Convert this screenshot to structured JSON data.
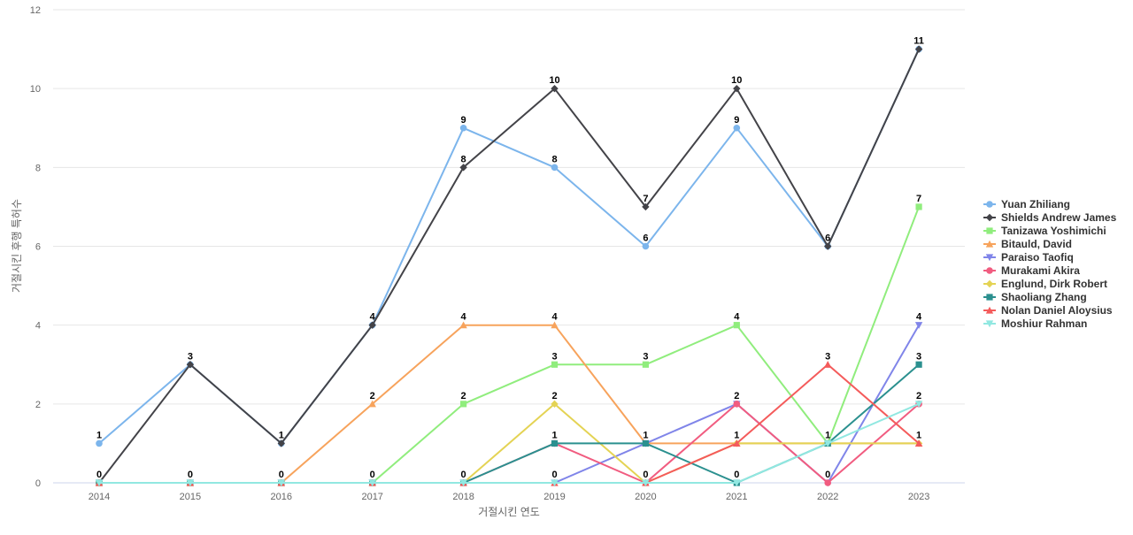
{
  "chart_data": {
    "type": "line",
    "categories": [
      "2014",
      "2015",
      "2016",
      "2017",
      "2018",
      "2019",
      "2020",
      "2021",
      "2022",
      "2023"
    ],
    "xlabel": "거절시킨 연도",
    "ylabel": "거절시킨 후행 특허수",
    "ylim": [
      0,
      12
    ],
    "yticks": [
      0,
      2,
      4,
      6,
      8,
      10,
      12
    ],
    "grid": true,
    "legend_position": "right",
    "series": [
      {
        "name": "Yuan Zhiliang",
        "color": "#7cb5ec",
        "marker": "circle",
        "values": [
          1,
          3,
          1,
          4,
          9,
          8,
          6,
          9,
          6,
          11
        ]
      },
      {
        "name": "Shields Andrew James",
        "color": "#434348",
        "marker": "diamond",
        "values": [
          0,
          3,
          1,
          4,
          8,
          10,
          7,
          10,
          6,
          11
        ]
      },
      {
        "name": "Tanizawa Yoshimichi",
        "color": "#90ed7d",
        "marker": "square",
        "values": [
          0,
          0,
          0,
          0,
          2,
          3,
          3,
          4,
          1,
          7
        ]
      },
      {
        "name": "Bitauld, David",
        "color": "#f7a35c",
        "marker": "triangle",
        "values": [
          0,
          0,
          0,
          2,
          4,
          4,
          1,
          1,
          1,
          1
        ]
      },
      {
        "name": "Paraiso Taofiq",
        "color": "#8085e9",
        "marker": "triangle-down",
        "values": [
          0,
          0,
          0,
          0,
          0,
          0,
          1,
          2,
          0,
          4
        ]
      },
      {
        "name": "Murakami Akira",
        "color": "#f15c80",
        "marker": "circle",
        "values": [
          0,
          0,
          0,
          0,
          0,
          1,
          0,
          2,
          0,
          2
        ]
      },
      {
        "name": "Englund, Dirk Robert",
        "color": "#e4d354",
        "marker": "diamond",
        "values": [
          0,
          0,
          0,
          0,
          0,
          2,
          0,
          1,
          1,
          1
        ]
      },
      {
        "name": "Shaoliang Zhang",
        "color": "#2b908f",
        "marker": "square",
        "values": [
          0,
          0,
          0,
          0,
          0,
          1,
          1,
          0,
          1,
          3
        ]
      },
      {
        "name": "Nolan Daniel Aloysius",
        "color": "#f45b5b",
        "marker": "triangle",
        "values": [
          0,
          0,
          0,
          0,
          0,
          0,
          0,
          1,
          3,
          1
        ]
      },
      {
        "name": "Moshiur Rahman",
        "color": "#91e8e1",
        "marker": "triangle-down",
        "values": [
          0,
          0,
          0,
          0,
          0,
          0,
          0,
          0,
          1,
          2
        ]
      }
    ],
    "data_labels": [
      {
        "x": "2014",
        "y": 1,
        "text": "1"
      },
      {
        "x": "2014",
        "y": 0,
        "text": "0"
      },
      {
        "x": "2015",
        "y": 3,
        "text": "3"
      },
      {
        "x": "2015",
        "y": 0,
        "text": "0"
      },
      {
        "x": "2016",
        "y": 1,
        "text": "1"
      },
      {
        "x": "2016",
        "y": 0,
        "text": "0"
      },
      {
        "x": "2017",
        "y": 4,
        "text": "4"
      },
      {
        "x": "2017",
        "y": 2,
        "text": "2"
      },
      {
        "x": "2017",
        "y": 0,
        "text": "0"
      },
      {
        "x": "2018",
        "y": 9,
        "text": "9"
      },
      {
        "x": "2018",
        "y": 8,
        "text": "8"
      },
      {
        "x": "2018",
        "y": 4,
        "text": "4"
      },
      {
        "x": "2018",
        "y": 2,
        "text": "2"
      },
      {
        "x": "2018",
        "y": 0,
        "text": "0"
      },
      {
        "x": "2019",
        "y": 10,
        "text": "10"
      },
      {
        "x": "2019",
        "y": 8,
        "text": "8"
      },
      {
        "x": "2019",
        "y": 4,
        "text": "4"
      },
      {
        "x": "2019",
        "y": 3,
        "text": "3"
      },
      {
        "x": "2019",
        "y": 2,
        "text": "2"
      },
      {
        "x": "2019",
        "y": 1,
        "text": "1"
      },
      {
        "x": "2019",
        "y": 0,
        "text": "0"
      },
      {
        "x": "2020",
        "y": 7,
        "text": "7"
      },
      {
        "x": "2020",
        "y": 6,
        "text": "6"
      },
      {
        "x": "2020",
        "y": 3,
        "text": "3"
      },
      {
        "x": "2020",
        "y": 1,
        "text": "1"
      },
      {
        "x": "2020",
        "y": 0,
        "text": "0"
      },
      {
        "x": "2021",
        "y": 10,
        "text": "10"
      },
      {
        "x": "2021",
        "y": 9,
        "text": "9"
      },
      {
        "x": "2021",
        "y": 4,
        "text": "4"
      },
      {
        "x": "2021",
        "y": 2,
        "text": "2"
      },
      {
        "x": "2021",
        "y": 1,
        "text": "1"
      },
      {
        "x": "2021",
        "y": 0,
        "text": "0"
      },
      {
        "x": "2022",
        "y": 6,
        "text": "6"
      },
      {
        "x": "2022",
        "y": 3,
        "text": "3"
      },
      {
        "x": "2022",
        "y": 1,
        "text": "1"
      },
      {
        "x": "2022",
        "y": 0,
        "text": "0"
      },
      {
        "x": "2023",
        "y": 11,
        "text": "11"
      },
      {
        "x": "2023",
        "y": 7,
        "text": "7"
      },
      {
        "x": "2023",
        "y": 4,
        "text": "4"
      },
      {
        "x": "2023",
        "y": 3,
        "text": "3"
      },
      {
        "x": "2023",
        "y": 2,
        "text": "2"
      },
      {
        "x": "2023",
        "y": 1,
        "text": "1"
      }
    ]
  }
}
